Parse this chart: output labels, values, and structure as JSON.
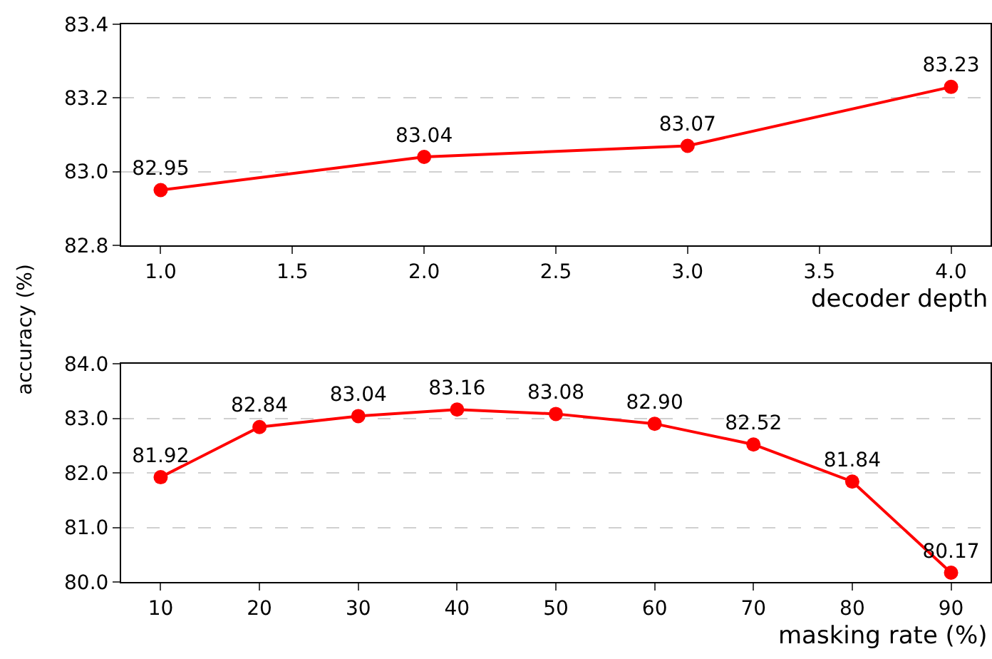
{
  "chart_data": [
    {
      "type": "line",
      "xlabel": "decoder depth",
      "ylabel": "accuracy (%)",
      "x": [
        1,
        2,
        3,
        4
      ],
      "series": [
        {
          "color": "#ff0000",
          "values": [
            82.95,
            83.04,
            83.07,
            83.23
          ],
          "value_labels": [
            "82.95",
            "83.04",
            "83.07",
            "83.23"
          ]
        }
      ],
      "xlim": [
        0.85,
        4.15
      ],
      "xticks": [
        {
          "value": 1,
          "label": "1.0"
        },
        {
          "value": 1.5,
          "label": "1.5"
        },
        {
          "value": 2,
          "label": "2.0"
        },
        {
          "value": 2.5,
          "label": "2.5"
        },
        {
          "value": 3,
          "label": "3.0"
        },
        {
          "value": 3.5,
          "label": "3.5"
        },
        {
          "value": 4,
          "label": "4.0"
        }
      ],
      "ylim": [
        82.8,
        83.4
      ],
      "yticks": [
        82.8,
        {
          "value": 83,
          "label": "83.0"
        },
        83.2,
        83.4
      ],
      "grid": "y",
      "marker": "circle",
      "line_style": "solid"
    },
    {
      "type": "line",
      "xlabel": "masking rate (%)",
      "x": [
        10,
        20,
        30,
        40,
        50,
        60,
        70,
        80,
        90
      ],
      "series": [
        {
          "color": "#ff0000",
          "values": [
            81.92,
            82.84,
            83.04,
            83.16,
            83.08,
            82.9,
            82.52,
            81.84,
            80.17
          ],
          "value_labels": [
            "81.92",
            "82.84",
            "83.04",
            "83.16",
            "83.08",
            "82.90",
            "82.52",
            "81.84",
            "80.17"
          ]
        }
      ],
      "xlim": [
        6,
        94
      ],
      "xticks": [
        10,
        20,
        30,
        40,
        50,
        60,
        70,
        80,
        90
      ],
      "ylim": [
        80,
        84
      ],
      "yticks": [
        {
          "value": 80,
          "label": "80.0"
        },
        {
          "value": 81,
          "label": "81.0"
        },
        {
          "value": 82,
          "label": "82.0"
        },
        {
          "value": 83,
          "label": "83.0"
        },
        {
          "value": 84,
          "label": "84.0"
        }
      ],
      "grid": "y",
      "marker": "circle",
      "line_style": "solid"
    }
  ]
}
